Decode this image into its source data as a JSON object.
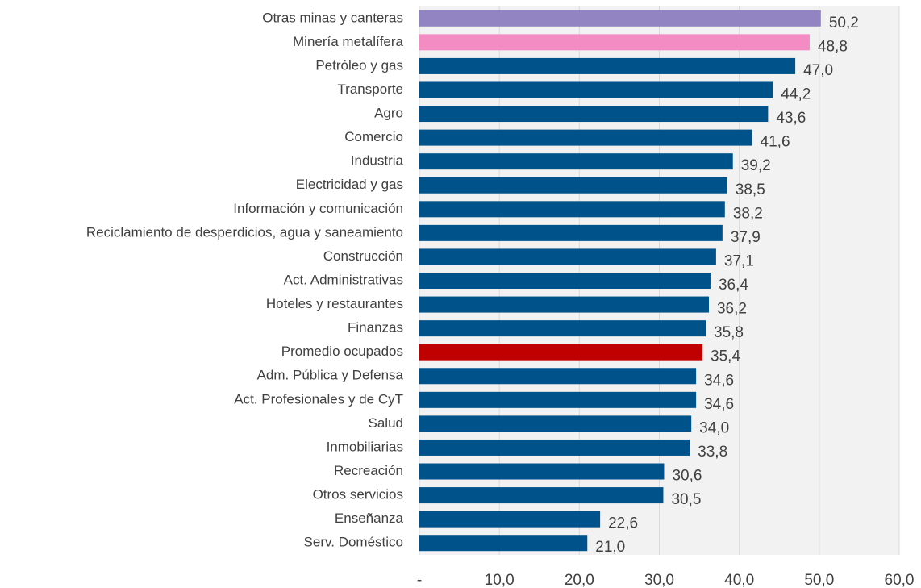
{
  "chart_data": {
    "type": "bar",
    "orientation": "horizontal",
    "categories": [
      "Otras minas y canteras",
      "Minería metalífera",
      "Petróleo y gas",
      "Transporte",
      "Agro",
      "Comercio",
      "Industria",
      "Electricidad y gas",
      "Información y comunicación",
      "Reciclamiento de desperdicios, agua y saneamiento",
      "Construcción",
      "Act. Administrativas",
      "Hoteles y restaurantes",
      "Finanzas",
      "Promedio ocupados",
      "Adm. Pública y Defensa",
      "Act. Profesionales y de CyT",
      "Salud",
      "Inmobiliarias",
      "Recreación",
      "Otros servicios",
      "Enseñanza",
      "Serv. Doméstico"
    ],
    "values": [
      50.2,
      48.8,
      47.0,
      44.2,
      43.6,
      41.6,
      39.2,
      38.5,
      38.2,
      37.9,
      37.1,
      36.4,
      36.2,
      35.8,
      35.4,
      34.6,
      34.6,
      34.0,
      33.8,
      30.6,
      30.5,
      22.6,
      21.0
    ],
    "value_labels": [
      "50,2",
      "48,8",
      "47,0",
      "44,2",
      "43,6",
      "41,6",
      "39,2",
      "38,5",
      "38,2",
      "37,9",
      "37,1",
      "36,4",
      "36,2",
      "35,8",
      "35,4",
      "34,6",
      "34,6",
      "34,0",
      "33,8",
      "30,6",
      "30,5",
      "22,6",
      "21,0"
    ],
    "colors": [
      "#9283c2",
      "#f48cc4",
      "#00538a",
      "#00538a",
      "#00538a",
      "#00538a",
      "#00538a",
      "#00538a",
      "#00538a",
      "#00538a",
      "#00538a",
      "#00538a",
      "#00538a",
      "#00538a",
      "#c00000",
      "#00538a",
      "#00538a",
      "#00538a",
      "#00538a",
      "#00538a",
      "#00538a",
      "#00538a",
      "#00538a"
    ],
    "xlim": [
      0,
      60
    ],
    "xticks": [
      {
        "value": 0,
        "label": "-"
      },
      {
        "value": 10,
        "label": "10,0"
      },
      {
        "value": 20,
        "label": "20,0"
      },
      {
        "value": 30,
        "label": "30,0"
      },
      {
        "value": 40,
        "label": "40,0"
      },
      {
        "value": 50,
        "label": "50,0"
      },
      {
        "value": 60,
        "label": "60,0"
      }
    ],
    "grid": true
  }
}
